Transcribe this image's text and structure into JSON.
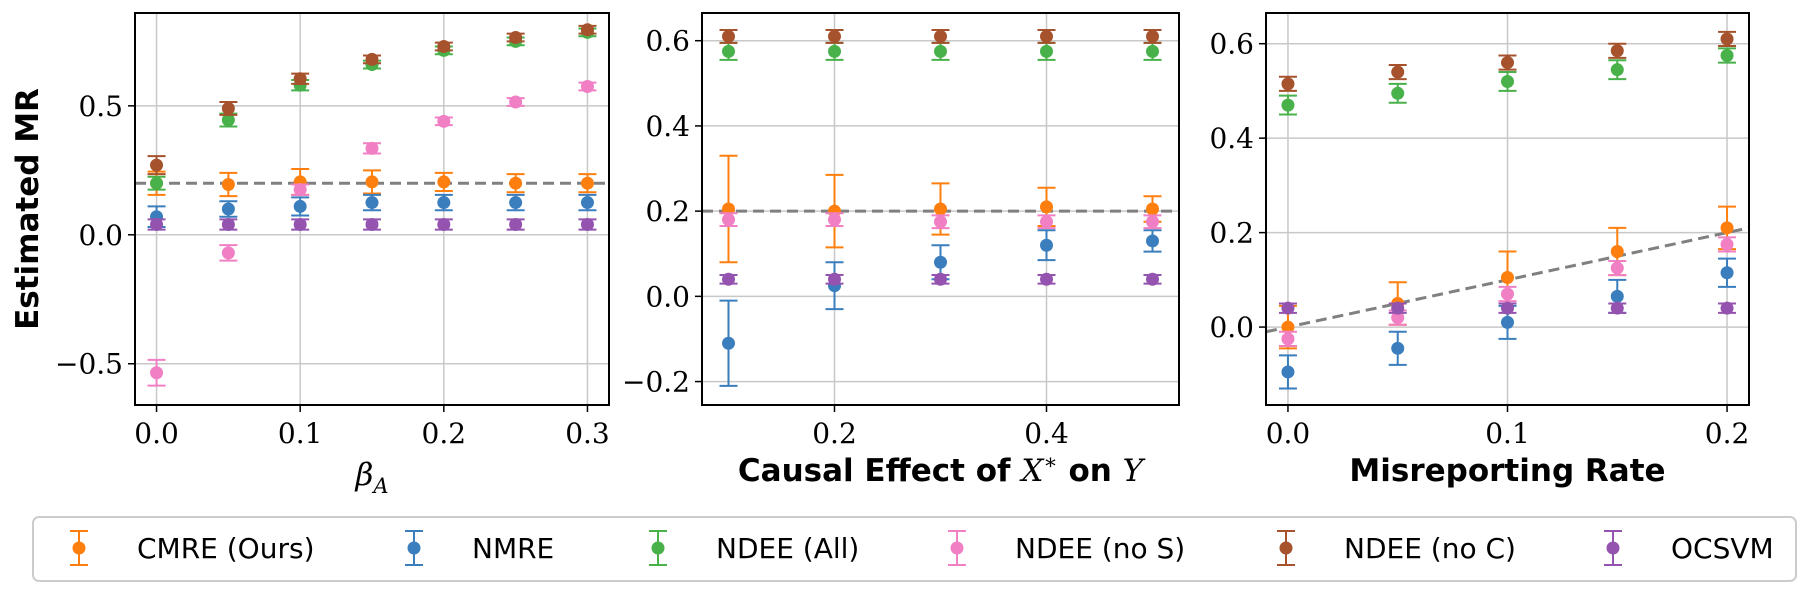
{
  "colors": {
    "CMRE (Ours)": "#ff7f0e",
    "NMRE": "#3a7ebd",
    "NDEE (All)": "#48b14a",
    "NDEE (no S)": "#f07fc4",
    "NDEE (no C)": "#a5522d",
    "OCSVM": "#9553b0",
    "reference": "#808080",
    "grid": "#c8c8c8"
  },
  "legend": [
    "CMRE (Ours)",
    "NMRE",
    "NDEE (All)",
    "NDEE (no S)",
    "NDEE (no C)",
    "OCSVM"
  ],
  "chart_data": [
    {
      "type": "scatter",
      "title": "",
      "ylabel": "Estimated MR",
      "xlabel": "β_A",
      "xlim": [
        -0.015,
        0.315
      ],
      "ylim": [
        -0.66,
        0.86
      ],
      "xticks": [
        0.0,
        0.1,
        0.2,
        0.3
      ],
      "xticklabels": [
        "0.0",
        "0.1",
        "0.2",
        "0.3"
      ],
      "yticks": [
        -0.5,
        0.0,
        0.5
      ],
      "yticklabels": [
        "−0.5",
        "0.0",
        "0.5"
      ],
      "grid": true,
      "reference_line": {
        "style": "dashed",
        "x": [
          -0.015,
          0.315
        ],
        "y": [
          0.2,
          0.2
        ]
      },
      "x": [
        0.0,
        0.05,
        0.1,
        0.15,
        0.2,
        0.25,
        0.3
      ],
      "series": [
        {
          "name": "CMRE (Ours)",
          "values": [
            0.2,
            0.195,
            0.205,
            0.205,
            0.205,
            0.2,
            0.2
          ],
          "err": [
            0.045,
            0.045,
            0.05,
            0.045,
            0.035,
            0.035,
            0.035
          ]
        },
        {
          "name": "NMRE",
          "values": [
            0.07,
            0.1,
            0.11,
            0.125,
            0.125,
            0.125,
            0.125
          ],
          "err": [
            0.04,
            0.03,
            0.035,
            0.03,
            0.03,
            0.03,
            0.03
          ]
        },
        {
          "name": "NDEE (All)",
          "values": [
            0.2,
            0.445,
            0.58,
            0.66,
            0.715,
            0.75,
            0.785
          ],
          "err": [
            0.025,
            0.025,
            0.02,
            0.015,
            0.015,
            0.015,
            0.015
          ]
        },
        {
          "name": "NDEE (no S)",
          "values": [
            -0.535,
            -0.07,
            0.175,
            0.335,
            0.44,
            0.515,
            0.575
          ],
          "err": [
            0.05,
            0.03,
            0.02,
            0.02,
            0.015,
            0.015,
            0.015
          ]
        },
        {
          "name": "NDEE (no C)",
          "values": [
            0.27,
            0.49,
            0.605,
            0.68,
            0.73,
            0.765,
            0.795
          ],
          "err": [
            0.035,
            0.025,
            0.02,
            0.015,
            0.015,
            0.015,
            0.015
          ]
        },
        {
          "name": "OCSVM",
          "values": [
            0.04,
            0.04,
            0.04,
            0.04,
            0.04,
            0.04,
            0.04
          ],
          "err": [
            0.02,
            0.02,
            0.02,
            0.02,
            0.02,
            0.02,
            0.02
          ]
        }
      ]
    },
    {
      "type": "scatter",
      "title": "",
      "ylabel": "",
      "xlabel": "Causal Effect of X* on Y",
      "xlim": [
        0.075,
        0.525
      ],
      "ylim": [
        -0.255,
        0.665
      ],
      "xticks": [
        0.2,
        0.4
      ],
      "xticklabels": [
        "0.2",
        "0.4"
      ],
      "yticks": [
        -0.2,
        0.0,
        0.2,
        0.4,
        0.6
      ],
      "yticklabels": [
        "−0.2",
        "0.0",
        "0.2",
        "0.4",
        "0.6"
      ],
      "grid": true,
      "reference_line": {
        "style": "dashed",
        "x": [
          0.075,
          0.525
        ],
        "y": [
          0.2,
          0.2
        ]
      },
      "x": [
        0.1,
        0.2,
        0.3,
        0.4,
        0.5
      ],
      "series": [
        {
          "name": "CMRE (Ours)",
          "values": [
            0.205,
            0.2,
            0.205,
            0.21,
            0.205
          ],
          "err": [
            0.125,
            0.085,
            0.06,
            0.045,
            0.03
          ]
        },
        {
          "name": "NMRE",
          "values": [
            -0.11,
            0.025,
            0.08,
            0.12,
            0.13
          ],
          "err": [
            0.1,
            0.055,
            0.04,
            0.035,
            0.025
          ]
        },
        {
          "name": "NDEE (All)",
          "values": [
            0.575,
            0.575,
            0.575,
            0.575,
            0.575
          ],
          "err": [
            0.02,
            0.02,
            0.02,
            0.02,
            0.02
          ]
        },
        {
          "name": "NDEE (no S)",
          "values": [
            0.18,
            0.18,
            0.175,
            0.175,
            0.175
          ],
          "err": [
            0.015,
            0.015,
            0.015,
            0.015,
            0.015
          ]
        },
        {
          "name": "NDEE (no C)",
          "values": [
            0.61,
            0.61,
            0.61,
            0.61,
            0.61
          ],
          "err": [
            0.015,
            0.015,
            0.015,
            0.015,
            0.015
          ]
        },
        {
          "name": "OCSVM",
          "values": [
            0.04,
            0.04,
            0.04,
            0.04,
            0.04
          ],
          "err": [
            0.01,
            0.01,
            0.01,
            0.01,
            0.01
          ]
        }
      ]
    },
    {
      "type": "scatter",
      "title": "",
      "ylabel": "",
      "xlabel": "Misreporting Rate",
      "xlim": [
        -0.01,
        0.21
      ],
      "ylim": [
        -0.165,
        0.665
      ],
      "xticks": [
        0.0,
        0.1,
        0.2
      ],
      "xticklabels": [
        "0.0",
        "0.1",
        "0.2"
      ],
      "yticks": [
        0.0,
        0.2,
        0.4,
        0.6
      ],
      "yticklabels": [
        "0.0",
        "0.2",
        "0.4",
        "0.6"
      ],
      "grid": true,
      "reference_line": {
        "style": "dashed",
        "x": [
          -0.01,
          0.21
        ],
        "y": [
          -0.01,
          0.21
        ]
      },
      "x": [
        0.0,
        0.05,
        0.1,
        0.15,
        0.2
      ],
      "series": [
        {
          "name": "CMRE (Ours)",
          "values": [
            0.0,
            0.05,
            0.105,
            0.16,
            0.21
          ],
          "err": [
            0.045,
            0.045,
            0.055,
            0.05,
            0.045
          ]
        },
        {
          "name": "NMRE",
          "values": [
            -0.095,
            -0.045,
            0.01,
            0.065,
            0.115
          ],
          "err": [
            0.035,
            0.035,
            0.035,
            0.035,
            0.03
          ]
        },
        {
          "name": "NDEE (All)",
          "values": [
            0.47,
            0.495,
            0.52,
            0.545,
            0.575
          ],
          "err": [
            0.02,
            0.02,
            0.02,
            0.02,
            0.015
          ]
        },
        {
          "name": "NDEE (no S)",
          "values": [
            -0.025,
            0.02,
            0.07,
            0.125,
            0.175
          ],
          "err": [
            0.015,
            0.015,
            0.015,
            0.015,
            0.015
          ]
        },
        {
          "name": "NDEE (no C)",
          "values": [
            0.515,
            0.54,
            0.56,
            0.585,
            0.61
          ],
          "err": [
            0.015,
            0.015,
            0.015,
            0.015,
            0.015
          ]
        },
        {
          "name": "OCSVM",
          "values": [
            0.04,
            0.04,
            0.04,
            0.04,
            0.04
          ],
          "err": [
            0.01,
            0.01,
            0.01,
            0.01,
            0.01
          ]
        }
      ]
    }
  ]
}
